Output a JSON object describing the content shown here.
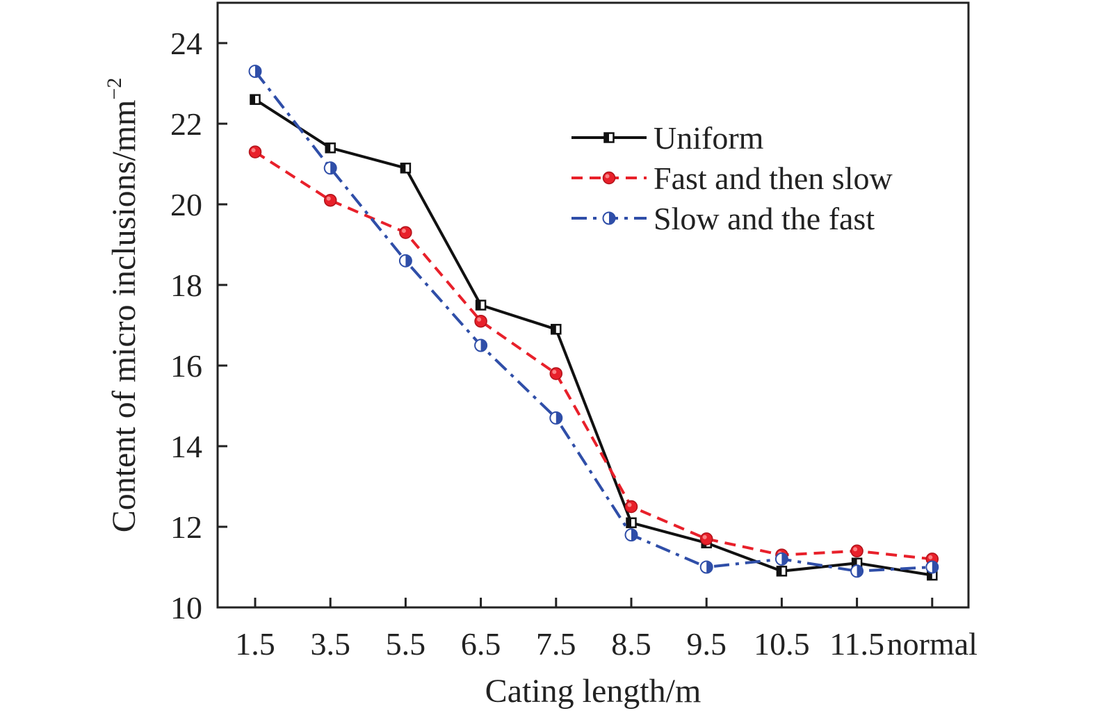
{
  "chart_data": {
    "type": "line",
    "xlabel": "Cating length/m",
    "ylabel": "Content of micro inclusions/mm",
    "ylabel_superscript": "−2",
    "categories": [
      "1.5",
      "3.5",
      "5.5",
      "6.5",
      "7.5",
      "8.5",
      "9.5",
      "10.5",
      "11.5",
      "normal"
    ],
    "ylim": [
      10,
      25
    ],
    "yticks": [
      "10",
      "12",
      "14",
      "16",
      "18",
      "20",
      "22",
      "24"
    ],
    "grid": false,
    "legend_position": "top-right",
    "series": [
      {
        "name": "Uniform",
        "color": "#111111",
        "line_style": "solid",
        "marker": "half-filled-square",
        "values": [
          22.6,
          21.4,
          20.9,
          17.5,
          16.9,
          12.1,
          11.6,
          10.9,
          11.1,
          10.8
        ]
      },
      {
        "name": "Fast and then slow",
        "color": "#e8202a",
        "line_style": "dashed",
        "marker": "filled-circle",
        "values": [
          21.3,
          20.1,
          19.3,
          17.1,
          15.8,
          12.5,
          11.7,
          11.3,
          11.4,
          11.2
        ]
      },
      {
        "name": "Slow and the fast",
        "color": "#2f4ea8",
        "line_style": "dash-dot",
        "marker": "half-filled-circle",
        "values": [
          23.3,
          20.9,
          18.6,
          16.5,
          14.7,
          11.8,
          11.0,
          11.2,
          10.9,
          11.0
        ]
      }
    ]
  }
}
